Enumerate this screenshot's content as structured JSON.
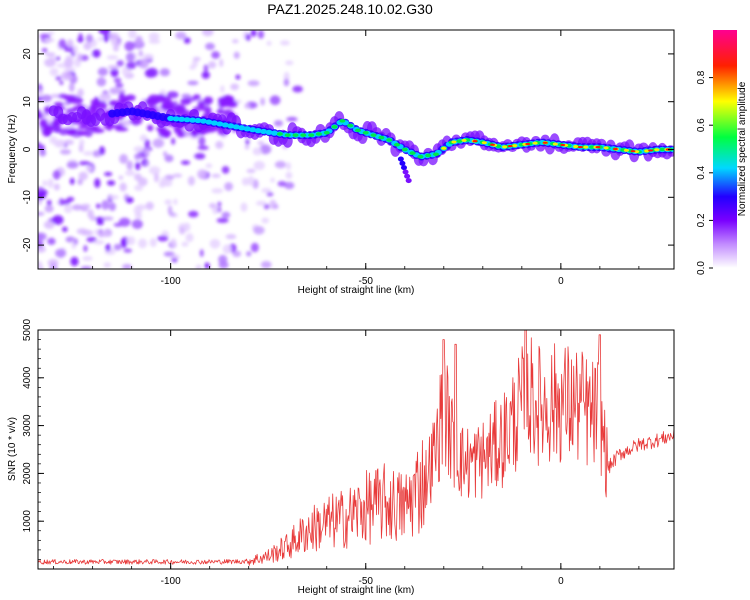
{
  "title": "PAZ1.2025.248.10.02.G30",
  "chart_data": [
    {
      "type": "heatmap",
      "name": "spectrogram",
      "xlabel": "Height of straight line (km)",
      "ylabel": "Frequency (Hz)",
      "xlim": [
        -134,
        29
      ],
      "ylim": [
        -25,
        25
      ],
      "xticks": [
        -100,
        -50,
        0
      ],
      "yticks": [
        -20,
        -10,
        0,
        10,
        20
      ],
      "ridge": {
        "x": [
          -134,
          -120,
          -110,
          -100,
          -92,
          -85,
          -78,
          -70,
          -64,
          -60,
          -56,
          -52,
          -48,
          -44,
          -40,
          -36,
          -32,
          -28,
          -24,
          -20,
          -15,
          -10,
          -5,
          0,
          5,
          10,
          15,
          20,
          25,
          29
        ],
        "y": [
          7,
          7,
          8,
          6.5,
          6,
          5,
          4,
          3,
          3,
          3.5,
          6,
          4,
          3,
          2,
          0,
          -1.5,
          -1,
          1.5,
          2,
          1.5,
          0.5,
          1,
          1.5,
          1,
          0.5,
          0.5,
          0,
          -0.5,
          0,
          0
        ]
      },
      "colorbar": {
        "label": "Normalized spectral amplitude",
        "ticks": [
          "0.0",
          "0.2",
          "0.4",
          "0.6",
          "0.8"
        ],
        "range": [
          0,
          1
        ],
        "colors": [
          "#ffffff",
          "#9b2cff",
          "#2200ff",
          "#00d8ff",
          "#00ff00",
          "#ffff00",
          "#ff0000",
          "#ff0090"
        ]
      }
    },
    {
      "type": "line",
      "name": "snr",
      "xlabel": "Height of straight line (km)",
      "ylabel": "SNR (10 * v/v)",
      "xlim": [
        -134,
        29
      ],
      "ylim": [
        0,
        5000
      ],
      "xticks": [
        -100,
        -50,
        0
      ],
      "yticks": [
        1000,
        2000,
        3000,
        4000,
        5000
      ],
      "color": "#e83a3a",
      "envelope": {
        "x": [
          -134,
          -100,
          -90,
          -80,
          -75,
          -70,
          -65,
          -60,
          -55,
          -50,
          -45,
          -40,
          -35,
          -32,
          -30,
          -28,
          -25,
          -20,
          -15,
          -10,
          -8,
          -5,
          0,
          5,
          8,
          10,
          12,
          15,
          20,
          25,
          29
        ],
        "y": [
          150,
          150,
          150,
          160,
          250,
          450,
          750,
          900,
          1000,
          1200,
          1300,
          1200,
          1800,
          2500,
          3500,
          2700,
          2200,
          2300,
          2700,
          3400,
          3600,
          3400,
          3500,
          3400,
          3200,
          3300,
          2100,
          2400,
          2600,
          2700,
          2800
        ]
      },
      "spikes": [
        {
          "x": -30,
          "y": 4800
        },
        {
          "x": -27,
          "y": 4700
        },
        {
          "x": -9,
          "y": 5000
        },
        {
          "x": 10,
          "y": 4900
        }
      ]
    }
  ]
}
